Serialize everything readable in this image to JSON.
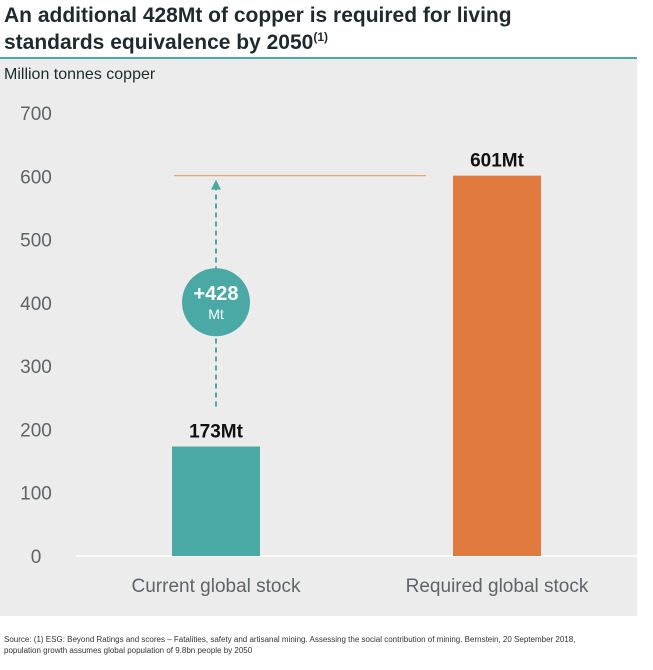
{
  "title": {
    "line1": "An additional 428Mt of copper is required for living",
    "line2": "standards equivalence by 2050",
    "superscript": "(1)"
  },
  "unit_label": "Million tonnes copper",
  "colors": {
    "current": "#4aa9a4",
    "required": "#e07a3f",
    "reference_line": "#e8a27a",
    "panel": "#ececec",
    "axis_text": "#5f6466",
    "title_text": "#1f2a2e"
  },
  "annotation": {
    "main": "+428",
    "sub": "Mt"
  },
  "footnote": {
    "line1": "Source: (1) ESG: Beyond Ratings and scores – Fatalities, safety and artisanal mining. Assessing the social contribution of mining. Bernstein, 20 September 2018,",
    "line2": "population growth assumes global population of 9.8bn people by 2050"
  },
  "chart_data": {
    "type": "bar",
    "categories": [
      "Current global stock",
      "Required global stock"
    ],
    "values": [
      173,
      601
    ],
    "data_labels": [
      "173Mt",
      "601Mt"
    ],
    "ylabel": "Million tonnes copper",
    "ylim": [
      0,
      700
    ],
    "yticks": [
      0,
      100,
      200,
      300,
      400,
      500,
      600,
      700
    ],
    "grid": false,
    "reference_line_value": 601,
    "difference": 428
  }
}
